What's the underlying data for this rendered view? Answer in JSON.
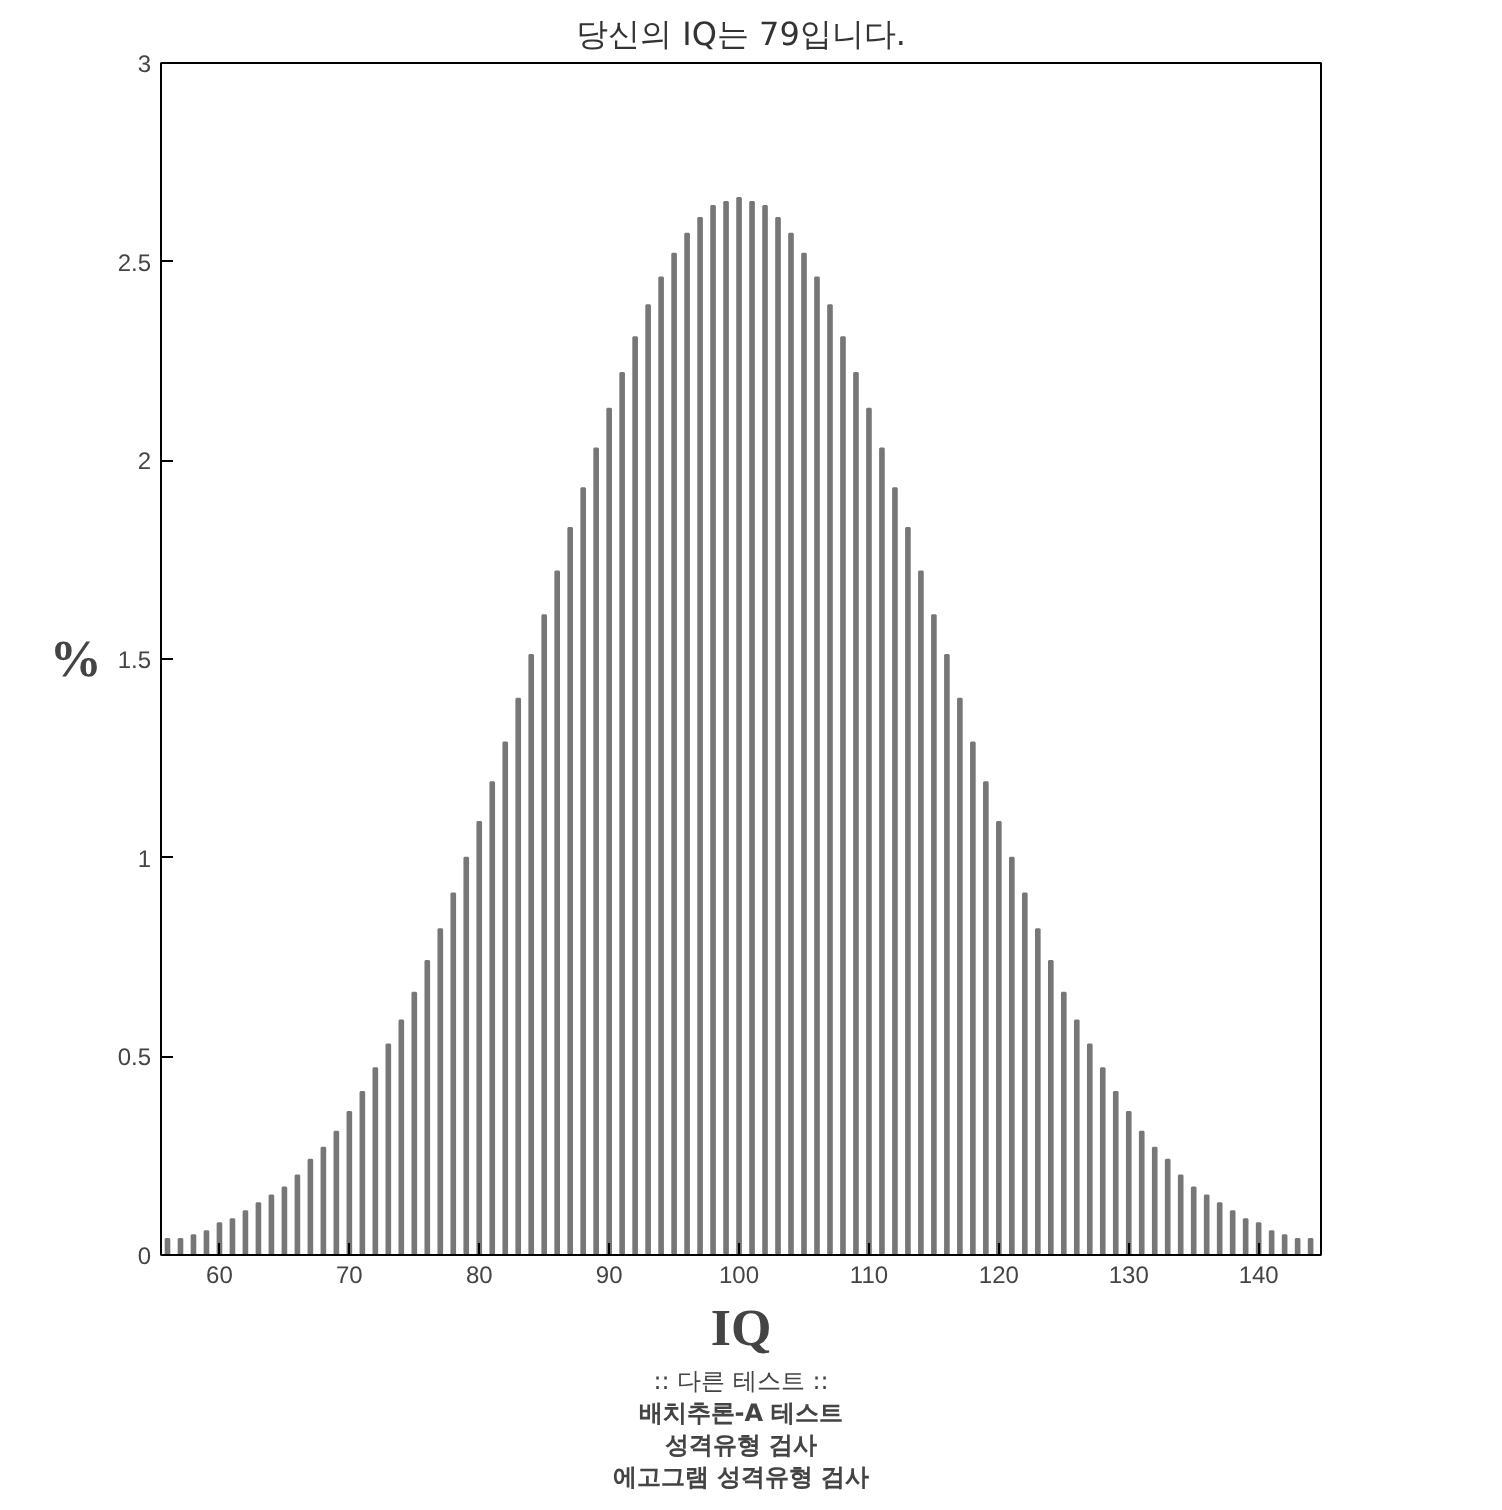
{
  "chart_data": {
    "type": "bar",
    "title": "당신의 IQ는 79입니다.",
    "xlabel": "IQ",
    "ylabel": "%",
    "x": [
      56,
      57,
      58,
      59,
      60,
      61,
      62,
      63,
      64,
      65,
      66,
      67,
      68,
      69,
      70,
      71,
      72,
      73,
      74,
      75,
      76,
      77,
      78,
      79,
      80,
      81,
      82,
      83,
      84,
      85,
      86,
      87,
      88,
      89,
      90,
      91,
      92,
      93,
      94,
      95,
      96,
      97,
      98,
      99,
      100,
      101,
      102,
      103,
      104,
      105,
      106,
      107,
      108,
      109,
      110,
      111,
      112,
      113,
      114,
      115,
      116,
      117,
      118,
      119,
      120,
      121,
      122,
      123,
      124,
      125,
      126,
      127,
      128,
      129,
      130,
      131,
      132,
      133,
      134,
      135,
      136,
      137,
      138,
      139,
      140,
      141,
      142,
      143,
      144
    ],
    "values": [
      0.04,
      0.04,
      0.05,
      0.06,
      0.08,
      0.09,
      0.11,
      0.13,
      0.15,
      0.17,
      0.2,
      0.24,
      0.27,
      0.31,
      0.36,
      0.41,
      0.47,
      0.53,
      0.59,
      0.66,
      0.74,
      0.82,
      0.91,
      1.0,
      1.09,
      1.19,
      1.29,
      1.4,
      1.51,
      1.61,
      1.72,
      1.83,
      1.93,
      2.03,
      2.13,
      2.22,
      2.31,
      2.39,
      2.46,
      2.52,
      2.57,
      2.61,
      2.64,
      2.65,
      2.66,
      2.65,
      2.64,
      2.61,
      2.57,
      2.52,
      2.46,
      2.39,
      2.31,
      2.22,
      2.13,
      2.03,
      1.93,
      1.83,
      1.72,
      1.61,
      1.51,
      1.4,
      1.29,
      1.19,
      1.09,
      1.0,
      0.91,
      0.82,
      0.74,
      0.66,
      0.59,
      0.53,
      0.47,
      0.41,
      0.36,
      0.31,
      0.27,
      0.24,
      0.2,
      0.17,
      0.15,
      0.13,
      0.11,
      0.09,
      0.08,
      0.06,
      0.05,
      0.04,
      0.04
    ],
    "color": "#777777",
    "xlim": [
      55.5,
      144.8
    ],
    "xticks": [
      60,
      70,
      80,
      90,
      100,
      110,
      120,
      130,
      140
    ],
    "ylim": [
      0,
      3
    ],
    "yticks": [
      0,
      0.5,
      1,
      1.5,
      2,
      2.5,
      3
    ],
    "grid": false,
    "annotations": [
      ":: 다른 테스트 ::",
      "배치추론-A 테스트",
      "성격유형 검사",
      "에고그램 성격유형 검사"
    ]
  }
}
